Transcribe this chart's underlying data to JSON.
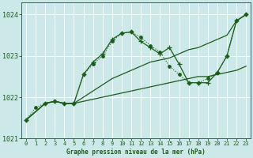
{
  "background_color": "#cce8e8",
  "grid_color": "#ffffff",
  "line_color": "#1a5c1a",
  "title": "Graphe pression niveau de la mer (hPa)",
  "xlim": [
    -0.5,
    23.5
  ],
  "ylim": [
    1021.0,
    1024.3
  ],
  "yticks": [
    1021,
    1022,
    1023,
    1024
  ],
  "xticks": [
    0,
    1,
    2,
    3,
    4,
    5,
    6,
    7,
    8,
    9,
    10,
    11,
    12,
    13,
    14,
    15,
    16,
    17,
    18,
    19,
    20,
    21,
    22,
    23
  ],
  "lines": [
    {
      "x": [
        0,
        1,
        2,
        3,
        4,
        5,
        6,
        7,
        8,
        9,
        10,
        11,
        12,
        13,
        14,
        15,
        16,
        17,
        18,
        19,
        20,
        21,
        22,
        23
      ],
      "y": [
        1021.45,
        1021.75,
        1021.85,
        1021.9,
        1021.85,
        1021.85,
        1022.55,
        1022.8,
        1023.0,
        1023.35,
        1023.55,
        1023.58,
        1023.45,
        1023.25,
        1023.1,
        1022.75,
        1022.55,
        1022.35,
        1022.35,
        1022.45,
        1022.6,
        1023.0,
        1023.85,
        1024.0
      ],
      "linestyle": "dotted",
      "linewidth": 0.8,
      "marker": "o",
      "markersize": 2.5
    },
    {
      "x": [
        0,
        2,
        3,
        4,
        5,
        6,
        7,
        8,
        9,
        10,
        11,
        12,
        13,
        14,
        15,
        16,
        17,
        18,
        19,
        20,
        21,
        22,
        23
      ],
      "y": [
        1021.45,
        1021.85,
        1021.9,
        1021.85,
        1021.85,
        1022.55,
        1022.85,
        1023.05,
        1023.4,
        1023.55,
        1023.58,
        1023.35,
        1023.2,
        1023.05,
        1023.2,
        1022.8,
        1022.35,
        1022.35,
        1022.35,
        1022.6,
        1023.0,
        1023.85,
        1024.0
      ],
      "linestyle": "solid",
      "linewidth": 0.9,
      "marker": "+",
      "markersize": 4
    },
    {
      "x": [
        0,
        2,
        3,
        4,
        5,
        6,
        7,
        8,
        9,
        10,
        11,
        12,
        13,
        14,
        15,
        16,
        17,
        18,
        19,
        20,
        21,
        22,
        23
      ],
      "y": [
        1021.45,
        1021.85,
        1021.9,
        1021.85,
        1021.85,
        1022.0,
        1022.15,
        1022.3,
        1022.45,
        1022.55,
        1022.65,
        1022.75,
        1022.85,
        1022.9,
        1022.95,
        1023.05,
        1023.15,
        1023.2,
        1023.3,
        1023.4,
        1023.5,
        1023.85,
        1024.0
      ],
      "linestyle": "solid",
      "linewidth": 0.9,
      "marker": null,
      "markersize": 0
    },
    {
      "x": [
        0,
        2,
        3,
        4,
        5,
        6,
        7,
        8,
        9,
        10,
        11,
        12,
        13,
        14,
        15,
        16,
        17,
        18,
        19,
        20,
        21,
        22,
        23
      ],
      "y": [
        1021.45,
        1021.85,
        1021.9,
        1021.85,
        1021.85,
        1021.9,
        1021.95,
        1022.0,
        1022.05,
        1022.1,
        1022.15,
        1022.2,
        1022.25,
        1022.3,
        1022.35,
        1022.4,
        1022.45,
        1022.5,
        1022.5,
        1022.55,
        1022.6,
        1022.65,
        1022.75
      ],
      "linestyle": "solid",
      "linewidth": 0.9,
      "marker": null,
      "markersize": 0
    }
  ]
}
